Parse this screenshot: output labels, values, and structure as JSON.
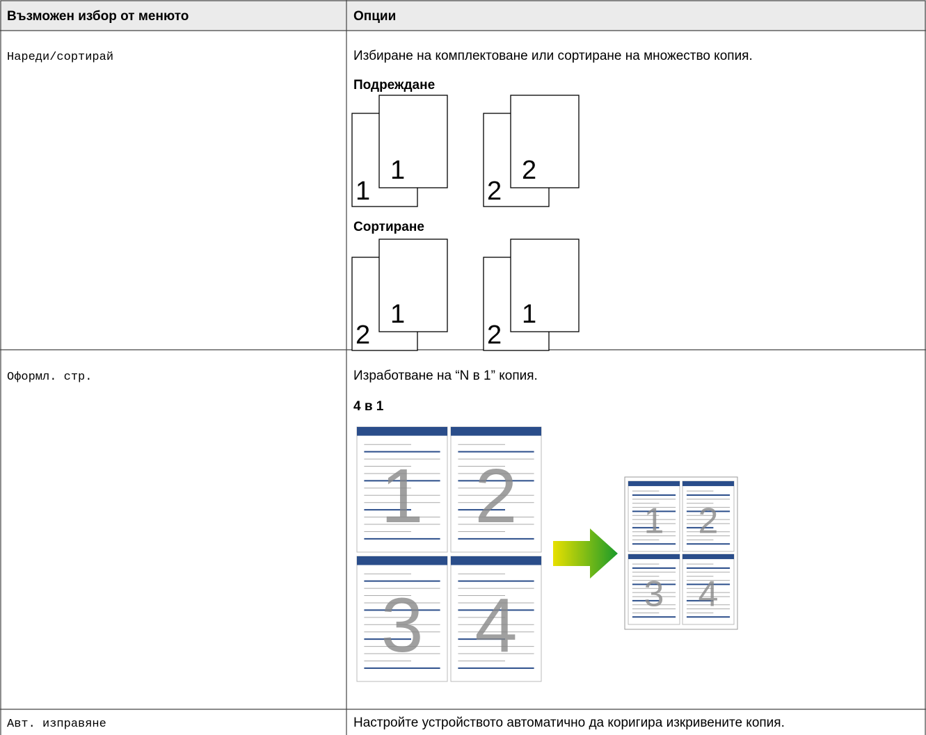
{
  "table": {
    "header": [
      "Възможен избор от менюто",
      "Опции"
    ],
    "rows": [
      {
        "menu": "Нареди/сортирай",
        "description": "Избиране на комплектоване или сортиране на множество копия.",
        "sections": [
          {
            "heading": "Подреждане",
            "pairs": [
              [
                "1",
                "1"
              ],
              [
                "2",
                "2"
              ]
            ]
          },
          {
            "heading": "Сортиране",
            "pairs": [
              [
                "2",
                "1"
              ],
              [
                "2",
                "1"
              ]
            ]
          }
        ]
      },
      {
        "menu": "Оформл. стр.",
        "description": "Изработване на “N в 1” копия.",
        "sections": [
          {
            "heading": "4 в 1",
            "pages": [
              "1",
              "2",
              "3",
              "4"
            ]
          }
        ]
      },
      {
        "menu": "Авт. изправяне",
        "description": "Настройте устройството автоматично да коригира изкривените копия."
      }
    ]
  }
}
